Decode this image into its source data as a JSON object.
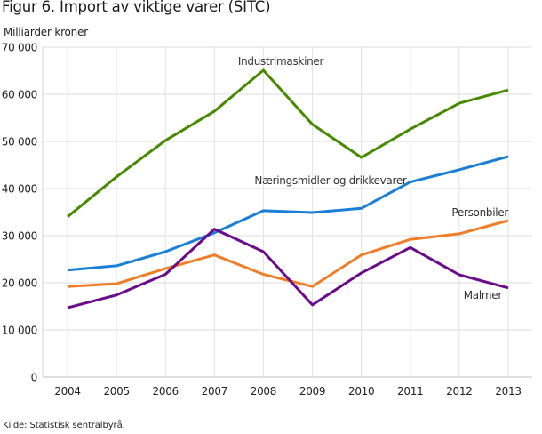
{
  "header": {
    "title": "Figur 6. Import av viktige varer (SITC)",
    "unit_label": "Milliarder kroner"
  },
  "footer": {
    "source": "Kilde: Statistisk sentralbyrå."
  },
  "chart_data": {
    "type": "line",
    "title": "Figur 6. Import av viktige varer (SITC)",
    "xlabel": "",
    "ylabel": "Milliarder kroner",
    "ylim": [
      0,
      70000
    ],
    "yticks": [
      0,
      10000,
      20000,
      30000,
      40000,
      50000,
      60000,
      70000
    ],
    "ytick_labels": [
      "0",
      "10 000",
      "20 000",
      "30 000",
      "40 000",
      "50 000",
      "60 000",
      "70 000"
    ],
    "x": [
      "2004",
      "2005",
      "2006",
      "2007",
      "2008",
      "2009",
      "2010",
      "2011",
      "2012",
      "2013"
    ],
    "grid": true,
    "legend": "inline labels",
    "series": [
      {
        "name": "Industrimaskiner",
        "color": "#478a00",
        "label_anchor": "2008",
        "values": [
          34000,
          42500,
          50200,
          56400,
          65100,
          53600,
          46600,
          52600,
          58100,
          60900
        ]
      },
      {
        "name": "Næringsmidler og drikkevarer",
        "color": "#1a7fd6",
        "label_anchor": "2008-2010",
        "values": [
          22700,
          23600,
          26600,
          30600,
          35300,
          34900,
          35800,
          41400,
          44000,
          46800
        ]
      },
      {
        "name": "Personbiler",
        "color": "#f07d27",
        "label_anchor": "2012-2013",
        "values": [
          19200,
          19800,
          23000,
          25900,
          21800,
          19200,
          25900,
          29200,
          30400,
          33200
        ]
      },
      {
        "name": "Malmer",
        "color": "#6a0b8c",
        "label_anchor": "2012-2013",
        "values": [
          14700,
          17400,
          21800,
          31400,
          26600,
          15300,
          22100,
          27500,
          21700,
          18900
        ]
      }
    ]
  }
}
